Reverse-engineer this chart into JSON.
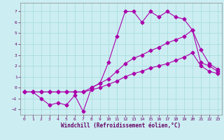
{
  "xlabel": "Windchill (Refroidissement éolien,°C)",
  "background_color": "#cceef2",
  "grid_color": "#aadddd",
  "line_color": "#aa00aa",
  "label_color": "#660066",
  "xlim": [
    -0.5,
    23.5
  ],
  "ylim": [
    -2.5,
    7.8
  ],
  "xticks": [
    0,
    1,
    2,
    3,
    4,
    5,
    6,
    7,
    8,
    9,
    10,
    11,
    12,
    13,
    14,
    15,
    16,
    17,
    18,
    19,
    20,
    21,
    22,
    23
  ],
  "yticks": [
    -2,
    -1,
    0,
    1,
    2,
    3,
    4,
    5,
    6,
    7
  ],
  "s1_x": [
    0,
    1,
    2,
    3,
    4,
    5,
    6,
    7,
    8,
    9,
    10,
    11,
    12,
    13,
    14,
    15,
    16,
    17,
    18,
    19,
    20,
    21,
    22,
    23
  ],
  "s1_y": [
    -0.4,
    -0.4,
    -1.0,
    -1.6,
    -1.4,
    -1.6,
    -0.7,
    -2.2,
    0.0,
    0.4,
    2.3,
    4.7,
    7.0,
    7.0,
    6.0,
    7.0,
    6.5,
    7.0,
    6.5,
    6.3,
    5.3,
    2.3,
    2.0,
    1.5
  ],
  "s2_x": [
    0,
    1,
    2,
    3,
    4,
    5,
    6,
    7,
    8,
    9,
    10,
    11,
    12,
    13,
    14,
    15,
    16,
    17,
    18,
    19,
    20,
    21,
    22,
    23
  ],
  "s2_y": [
    -0.4,
    -0.4,
    -0.4,
    -0.4,
    -0.4,
    -0.4,
    -0.4,
    -0.4,
    0.0,
    0.4,
    0.8,
    1.5,
    2.2,
    2.7,
    3.0,
    3.4,
    3.7,
    4.1,
    4.4,
    4.7,
    5.3,
    3.5,
    2.2,
    1.7
  ],
  "s3_x": [
    0,
    1,
    2,
    3,
    4,
    5,
    6,
    7,
    8,
    9,
    10,
    11,
    12,
    13,
    14,
    15,
    16,
    17,
    18,
    19,
    20,
    21,
    22,
    23
  ],
  "s3_y": [
    -0.4,
    -0.4,
    -0.4,
    -0.4,
    -0.4,
    -0.4,
    -0.4,
    -0.4,
    -0.2,
    0.0,
    0.3,
    0.6,
    1.0,
    1.3,
    1.5,
    1.8,
    2.0,
    2.2,
    2.5,
    2.8,
    3.2,
    2.0,
    1.5,
    1.3
  ]
}
